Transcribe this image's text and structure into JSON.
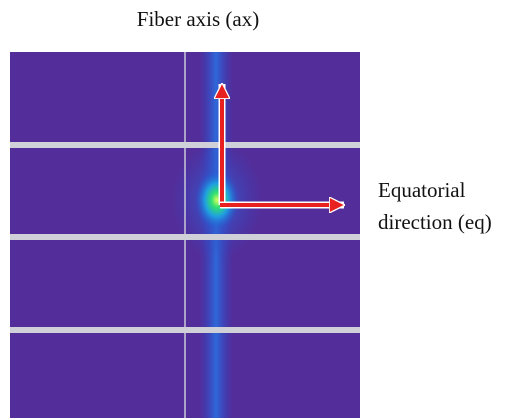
{
  "title": "Fiber axis (ax)",
  "side_label": {
    "lines": [
      "Equatorial",
      "direction (eq)"
    ]
  }
}
